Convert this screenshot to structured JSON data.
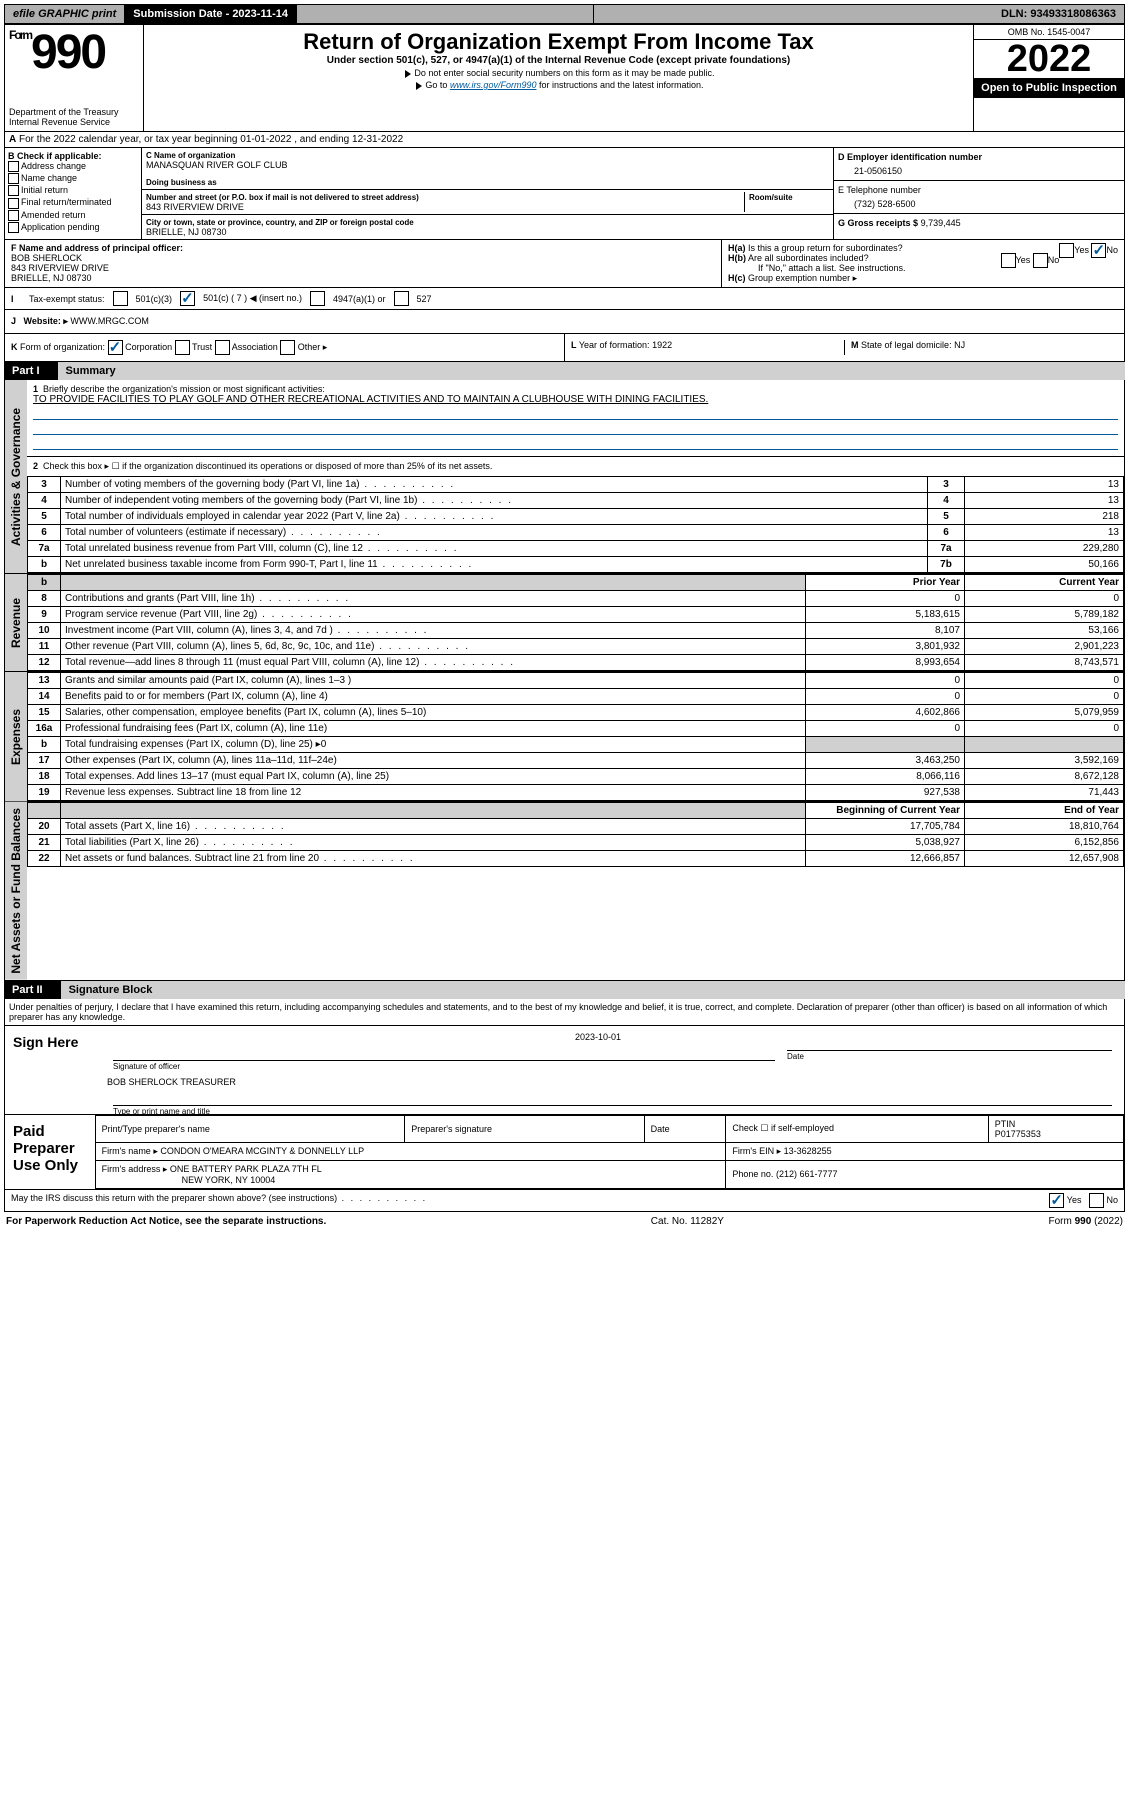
{
  "topbar": {
    "efile": "efile GRAPHIC print",
    "submission": "Submission Date - 2023-11-14",
    "dln": "DLN: 93493318086363"
  },
  "header": {
    "form_label": "Form",
    "form_number": "990",
    "dept": "Department of the Treasury",
    "irs": "Internal Revenue Service",
    "title": "Return of Organization Exempt From Income Tax",
    "sub": "Under section 501(c), 527, or 4947(a)(1) of the Internal Revenue Code (except private foundations)",
    "warn": "Do not enter social security numbers on this form as it may be made public.",
    "goto_pre": "Go to ",
    "link": "www.irs.gov/Form990",
    "goto_post": " for instructions and the latest information.",
    "omb": "OMB No. 1545-0047",
    "year": "2022",
    "open": "Open to Public Inspection"
  },
  "taxyear": "For the 2022 calendar year, or tax year beginning 01-01-2022   , and ending 12-31-2022",
  "checkB_label": "B Check if applicable:",
  "checkB": [
    "Address change",
    "Name change",
    "Initial return",
    "Final return/terminated",
    "Amended return",
    "Application pending"
  ],
  "C": {
    "name_label": "C Name of organization",
    "name": "MANASQUAN RIVER GOLF CLUB",
    "dba_label": "Doing business as",
    "addr_label": "Number and street (or P.O. box if mail is not delivered to street address)",
    "room_label": "Room/suite",
    "addr": "843 RIVERVIEW DRIVE",
    "city_label": "City or town, state or province, country, and ZIP or foreign postal code",
    "city": "BRIELLE, NJ  08730"
  },
  "D": {
    "label": "D Employer identification number",
    "val": "21-0506150"
  },
  "E": {
    "label": "E Telephone number",
    "val": "(732) 528-6500"
  },
  "G": {
    "label": "G Gross receipts $",
    "val": "9,739,445"
  },
  "F": {
    "label": "F Name and address of principal officer:",
    "l1": "BOB SHERLOCK",
    "l2": "843 RIVERVIEW DRIVE",
    "l3": "BRIELLE, NJ  08730"
  },
  "H": {
    "a": "Is this a group return for subordinates?",
    "b": "Are all subordinates included?",
    "b_note": "If \"No,\" attach a list. See instructions.",
    "c": "Group exemption number ▸",
    "yes": "Yes",
    "no": "No"
  },
  "I": {
    "label": "Tax-exempt status:",
    "opt501c3": "501(c)(3)",
    "opt501c": "501(c) ( 7 ) ◀ (insert no.)",
    "opt4947": "4947(a)(1) or",
    "opt527": "527"
  },
  "J": {
    "label": "Website: ▸",
    "val": "WWW.MRGC.COM"
  },
  "K": {
    "label": "Form of organization:",
    "corp": "Corporation",
    "trust": "Trust",
    "assoc": "Association",
    "other": "Other ▸"
  },
  "L": {
    "label": "Year of formation:",
    "val": "1922"
  },
  "M": {
    "label": "State of legal domicile:",
    "val": "NJ"
  },
  "partI": {
    "tag": "Part I",
    "title": "Summary"
  },
  "summary": {
    "l1_label": "Briefly describe the organization's mission or most significant activities:",
    "l1_val": "TO PROVIDE FACILITIES TO PLAY GOLF AND OTHER RECREATIONAL ACTIVITIES AND TO MAINTAIN A CLUBHOUSE WITH DINING FACILITIES.",
    "l2": "Check this box ▸ ☐  if the organization discontinued its operations or disposed of more than 25% of its net assets.",
    "rows": [
      {
        "n": "3",
        "t": "Number of voting members of the governing body (Part VI, line 1a)",
        "box": "3",
        "v": "13"
      },
      {
        "n": "4",
        "t": "Number of independent voting members of the governing body (Part VI, line 1b)",
        "box": "4",
        "v": "13"
      },
      {
        "n": "5",
        "t": "Total number of individuals employed in calendar year 2022 (Part V, line 2a)",
        "box": "5",
        "v": "218"
      },
      {
        "n": "6",
        "t": "Total number of volunteers (estimate if necessary)",
        "box": "6",
        "v": "13"
      },
      {
        "n": "7a",
        "t": "Total unrelated business revenue from Part VIII, column (C), line 12",
        "box": "7a",
        "v": "229,280"
      },
      {
        "n": "b",
        "t": "Net unrelated business taxable income from Form 990-T, Part I, line 11",
        "box": "7b",
        "v": "50,166"
      }
    ],
    "prior": "Prior Year",
    "current": "Current Year",
    "rev": [
      {
        "n": "8",
        "t": "Contributions and grants (Part VIII, line 1h)",
        "p": "0",
        "c": "0"
      },
      {
        "n": "9",
        "t": "Program service revenue (Part VIII, line 2g)",
        "p": "5,183,615",
        "c": "5,789,182"
      },
      {
        "n": "10",
        "t": "Investment income (Part VIII, column (A), lines 3, 4, and 7d )",
        "p": "8,107",
        "c": "53,166"
      },
      {
        "n": "11",
        "t": "Other revenue (Part VIII, column (A), lines 5, 6d, 8c, 9c, 10c, and 11e)",
        "p": "3,801,932",
        "c": "2,901,223"
      },
      {
        "n": "12",
        "t": "Total revenue—add lines 8 through 11 (must equal Part VIII, column (A), line 12)",
        "p": "8,993,654",
        "c": "8,743,571"
      }
    ],
    "exp": [
      {
        "n": "13",
        "t": "Grants and similar amounts paid (Part IX, column (A), lines 1–3 )",
        "p": "0",
        "c": "0"
      },
      {
        "n": "14",
        "t": "Benefits paid to or for members (Part IX, column (A), line 4)",
        "p": "0",
        "c": "0"
      },
      {
        "n": "15",
        "t": "Salaries, other compensation, employee benefits (Part IX, column (A), lines 5–10)",
        "p": "4,602,866",
        "c": "5,079,959"
      },
      {
        "n": "16a",
        "t": "Professional fundraising fees (Part IX, column (A), line 11e)",
        "p": "0",
        "c": "0"
      },
      {
        "n": "b",
        "t": "Total fundraising expenses (Part IX, column (D), line 25) ▸0",
        "p": "",
        "c": "",
        "shade": true
      },
      {
        "n": "17",
        "t": "Other expenses (Part IX, column (A), lines 11a–11d, 11f–24e)",
        "p": "3,463,250",
        "c": "3,592,169"
      },
      {
        "n": "18",
        "t": "Total expenses. Add lines 13–17 (must equal Part IX, column (A), line 25)",
        "p": "8,066,116",
        "c": "8,672,128"
      },
      {
        "n": "19",
        "t": "Revenue less expenses. Subtract line 18 from line 12",
        "p": "927,538",
        "c": "71,443"
      }
    ],
    "boy": "Beginning of Current Year",
    "eoy": "End of Year",
    "net": [
      {
        "n": "20",
        "t": "Total assets (Part X, line 16)",
        "p": "17,705,784",
        "c": "18,810,764"
      },
      {
        "n": "21",
        "t": "Total liabilities (Part X, line 26)",
        "p": "5,038,927",
        "c": "6,152,856"
      },
      {
        "n": "22",
        "t": "Net assets or fund balances. Subtract line 21 from line 20",
        "p": "12,666,857",
        "c": "12,657,908"
      }
    ]
  },
  "sides": {
    "ag": "Activities & Governance",
    "rev": "Revenue",
    "exp": "Expenses",
    "net": "Net Assets or Fund Balances"
  },
  "partII": {
    "tag": "Part II",
    "title": "Signature Block"
  },
  "sigdecl": "Under penalties of perjury, I declare that I have examined this return, including accompanying schedules and statements, and to the best of my knowledge and belief, it is true, correct, and complete. Declaration of preparer (other than officer) is based on all information of which preparer has any knowledge.",
  "sign": {
    "here": "Sign Here",
    "sig_label": "Signature of officer",
    "date_label": "Date",
    "date": "2023-10-01",
    "name": "BOB SHERLOCK  TREASURER",
    "name_label": "Type or print name and title"
  },
  "paid": {
    "here": "Paid Preparer Use Only",
    "pt": "Print/Type preparer's name",
    "ps": "Preparer's signature",
    "dt": "Date",
    "self": "Check ☐ if self-employed",
    "ptin_l": "PTIN",
    "ptin": "P01775353",
    "firm_l": "Firm's name  ▸",
    "firm": "CONDON O'MEARA MCGINTY & DONNELLY LLP",
    "ein_l": "Firm's EIN ▸",
    "ein": "13-3628255",
    "addr_l": "Firm's address ▸",
    "addr1": "ONE BATTERY PARK PLAZA 7TH FL",
    "addr2": "NEW YORK, NY  10004",
    "phone_l": "Phone no.",
    "phone": "(212) 661-7777"
  },
  "discuss": "May the IRS discuss this return with the preparer shown above? (see instructions)",
  "footer": {
    "l": "For Paperwork Reduction Act Notice, see the separate instructions.",
    "m": "Cat. No. 11282Y",
    "r": "Form 990 (2022)"
  }
}
